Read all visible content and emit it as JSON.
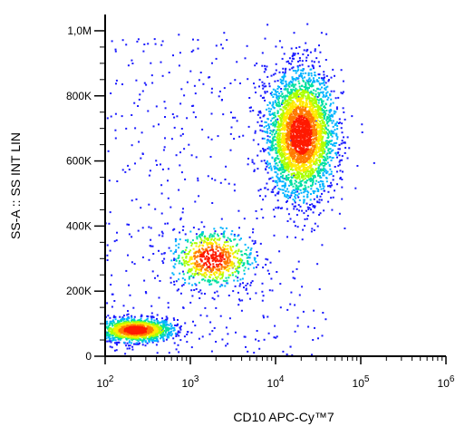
{
  "chart_data": {
    "type": "scatter",
    "style": "flow cytometry density dot plot",
    "xlabel": "CD10 APC-Cy™7",
    "ylabel": "SS-A :: SS INT LIN",
    "xscale": "log",
    "xlim": [
      100,
      1000000
    ],
    "ylim": [
      0,
      1050000
    ],
    "x_ticks": [
      {
        "value": 100,
        "base": "10",
        "exp": "2"
      },
      {
        "value": 1000,
        "base": "10",
        "exp": "3"
      },
      {
        "value": 10000,
        "base": "10",
        "exp": "4"
      },
      {
        "value": 100000,
        "base": "10",
        "exp": "5"
      },
      {
        "value": 1000000,
        "base": "10",
        "exp": "6"
      }
    ],
    "y_ticks": [
      {
        "value": 0,
        "label": "0"
      },
      {
        "value": 200000,
        "label": "200K"
      },
      {
        "value": 400000,
        "label": "400K"
      },
      {
        "value": 600000,
        "label": "600K"
      },
      {
        "value": 800000,
        "label": "800K"
      },
      {
        "value": 1000000,
        "label": "1,0M"
      }
    ],
    "grid": false,
    "legend": "none",
    "colormap": [
      "#1a1aff",
      "#00b4ff",
      "#00e0a0",
      "#aaff00",
      "#ffea00",
      "#ff7a00",
      "#ff1a00"
    ],
    "populations": [
      {
        "x_center": 230,
        "y_center": 80000,
        "x_spread_log10": 0.22,
        "y_spread": 18000,
        "count": 1400
      },
      {
        "x_center": 1800,
        "y_center": 300000,
        "x_spread_log10": 0.24,
        "y_spread": 45000,
        "count": 700
      },
      {
        "x_center": 20000,
        "y_center": 680000,
        "x_spread_log10": 0.2,
        "y_spread": 95000,
        "count": 3200
      }
    ]
  }
}
